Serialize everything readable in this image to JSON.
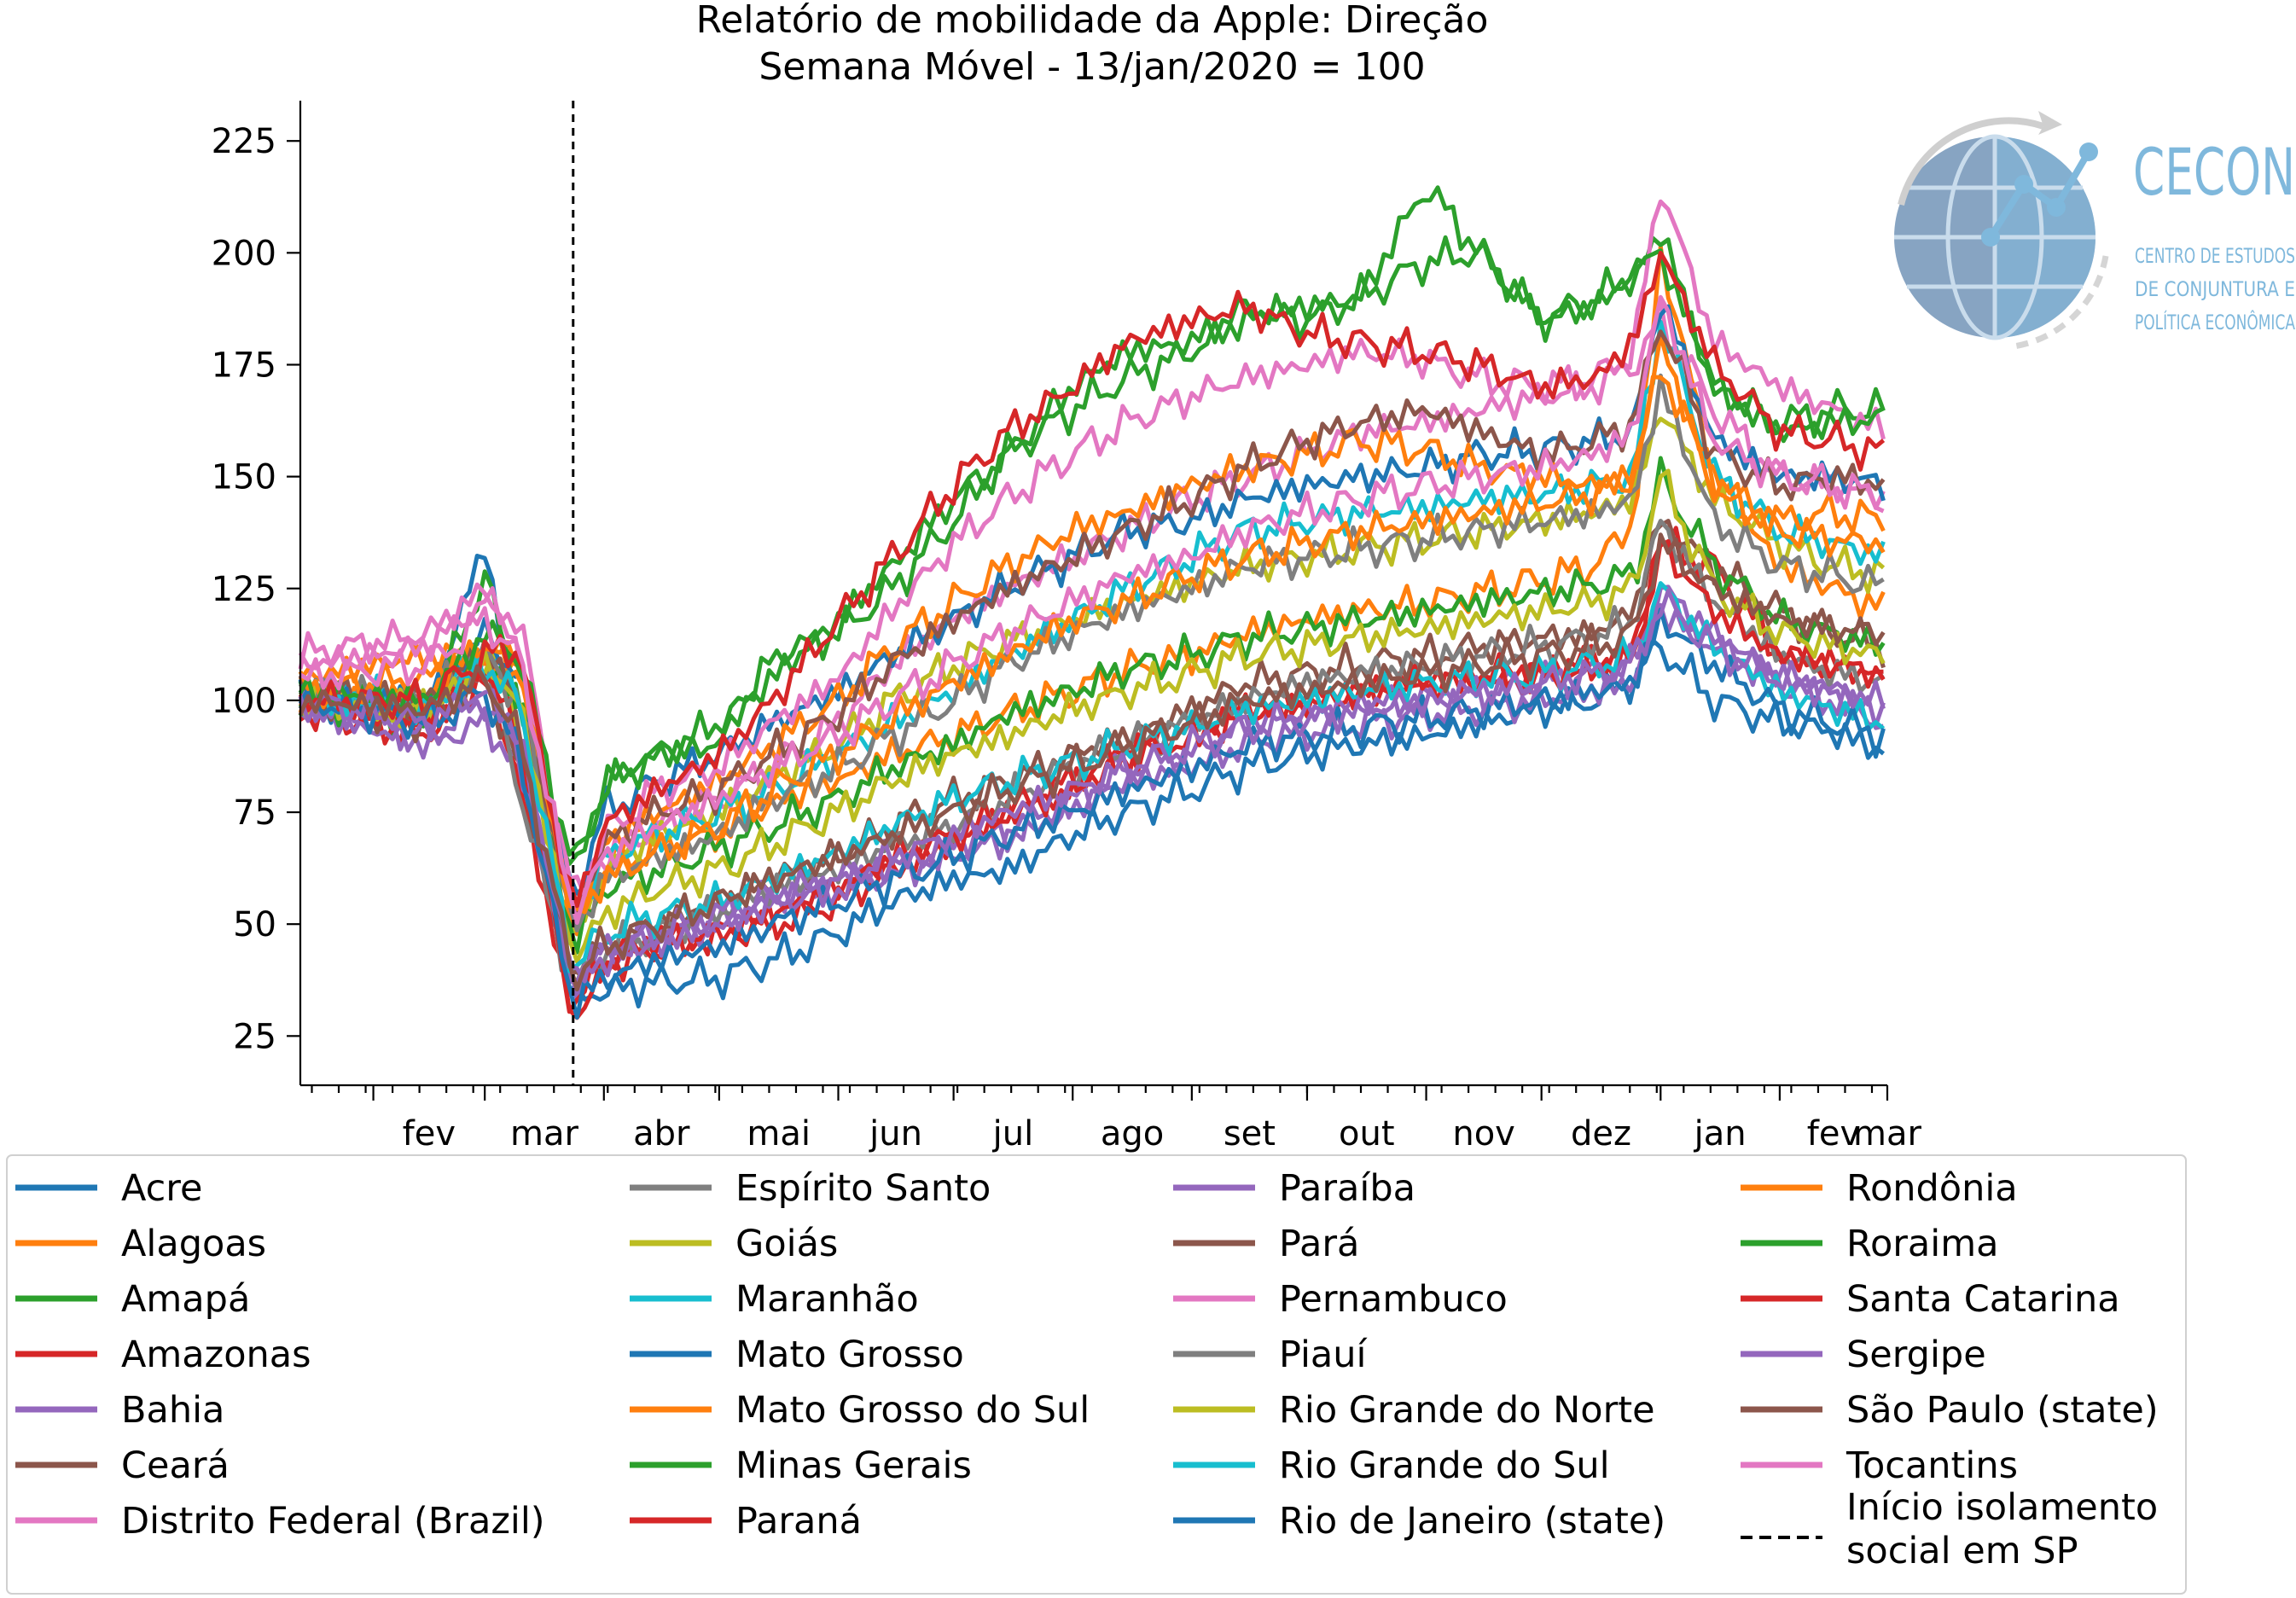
{
  "chart_data": {
    "type": "line",
    "title": "Relatório de mobilidade da Apple: Direção",
    "subtitle": "Semana Móvel -  13/jan/2020 = 100",
    "xlabel": "",
    "ylabel": "",
    "x_start": "2020-01-13",
    "x_end": "2021-03-01",
    "month_ticks": [
      {
        "label": "fev",
        "date": "2020-02-01"
      },
      {
        "label": "mar",
        "date": "2020-03-01"
      },
      {
        "label": "abr",
        "date": "2020-04-01"
      },
      {
        "label": "mai",
        "date": "2020-05-01"
      },
      {
        "label": "jun",
        "date": "2020-06-01"
      },
      {
        "label": "jul",
        "date": "2020-07-01"
      },
      {
        "label": "ago",
        "date": "2020-08-01"
      },
      {
        "label": "set",
        "date": "2020-09-01"
      },
      {
        "label": "out",
        "date": "2020-10-01"
      },
      {
        "label": "nov",
        "date": "2020-11-01"
      },
      {
        "label": "dez",
        "date": "2020-12-01"
      },
      {
        "label": "jan",
        "date": "2021-01-01"
      },
      {
        "label": "fev",
        "date": "2021-02-01"
      },
      {
        "label": "mar",
        "date": "2021-03-01"
      }
    ],
    "y_ticks": [
      25,
      50,
      75,
      100,
      125,
      150,
      175,
      200,
      225
    ],
    "ylim": [
      14,
      234
    ],
    "grid": false,
    "legend_position": "bottom",
    "key_dates": [
      "2020-01-13",
      "2020-02-15",
      "2020-03-01",
      "2020-03-10",
      "2020-03-24",
      "2020-04-01",
      "2020-04-15",
      "2020-05-01",
      "2020-05-15",
      "2020-06-01",
      "2020-06-15",
      "2020-07-01",
      "2020-07-15",
      "2020-08-01",
      "2020-08-15",
      "2020-09-01",
      "2020-09-15",
      "2020-10-01",
      "2020-10-15",
      "2020-11-01",
      "2020-11-15",
      "2020-12-01",
      "2020-12-15",
      "2020-12-25",
      "2021-01-01",
      "2021-01-15",
      "2021-02-01",
      "2021-02-15",
      "2021-03-01"
    ],
    "vline": {
      "date": "2020-03-24",
      "label": "Início isolamento social em SP"
    },
    "series": [
      {
        "name": "Acre",
        "color": "#1f77b4",
        "values": [
          100,
          98,
          135,
          90,
          33,
          35,
          37,
          38,
          42,
          48,
          55,
          60,
          62,
          70,
          75,
          80,
          85,
          88,
          90,
          92,
          95,
          98,
          100,
          105,
          112,
          100,
          95,
          93,
          88
        ]
      },
      {
        "name": "Alagoas",
        "color": "#ff7f0e",
        "values": [
          105,
          110,
          110,
          110,
          45,
          63,
          67,
          70,
          77,
          82,
          88,
          92,
          97,
          102,
          107,
          110,
          115,
          118,
          120,
          122,
          124,
          127,
          130,
          140,
          200,
          150,
          130,
          125,
          120
        ]
      },
      {
        "name": "Amapá",
        "color": "#2ca02c",
        "values": [
          102,
          95,
          128,
          100,
          60,
          82,
          88,
          90,
          110,
          115,
          125,
          140,
          155,
          170,
          178,
          180,
          188,
          185,
          190,
          198,
          200,
          185,
          188,
          195,
          205,
          170,
          162,
          165,
          165
        ]
      },
      {
        "name": "Amazonas",
        "color": "#d62728",
        "values": [
          98,
          92,
          105,
          82,
          28,
          40,
          45,
          48,
          50,
          55,
          62,
          68,
          75,
          80,
          88,
          92,
          98,
          100,
          102,
          104,
          105,
          106,
          108,
          110,
          135,
          130,
          110,
          108,
          105
        ]
      },
      {
        "name": "Bahia",
        "color": "#9467bd",
        "values": [
          98,
          90,
          95,
          85,
          37,
          43,
          47,
          50,
          55,
          60,
          62,
          67,
          70,
          77,
          85,
          88,
          95,
          97,
          99,
          100,
          102,
          104,
          106,
          108,
          125,
          115,
          105,
          102,
          95
        ]
      },
      {
        "name": "Ceará",
        "color": "#8c564b",
        "values": [
          100,
          95,
          105,
          85,
          38,
          45,
          50,
          55,
          60,
          65,
          72,
          78,
          82,
          88,
          92,
          98,
          104,
          106,
          108,
          110,
          112,
          114,
          115,
          120,
          140,
          130,
          120,
          115,
          112
        ]
      },
      {
        "name": "Distrito Federal (Brazil)",
        "color": "#e377c2",
        "values": [
          110,
          115,
          125,
          110,
          50,
          65,
          72,
          78,
          85,
          95,
          108,
          118,
          125,
          132,
          138,
          145,
          150,
          155,
          160,
          162,
          165,
          168,
          170,
          175,
          185,
          165,
          150,
          148,
          145
        ]
      },
      {
        "name": "Espírito Santo",
        "color": "#7f7f7f",
        "values": [
          102,
          100,
          110,
          80,
          35,
          44,
          48,
          53,
          58,
          62,
          68,
          72,
          78,
          85,
          90,
          95,
          100,
          104,
          106,
          108,
          110,
          112,
          114,
          118,
          140,
          122,
          110,
          106,
          104
        ]
      },
      {
        "name": "Goiás",
        "color": "#bcbd22",
        "values": [
          100,
          98,
          110,
          95,
          45,
          62,
          70,
          75,
          83,
          90,
          100,
          108,
          113,
          118,
          122,
          126,
          130,
          132,
          134,
          136,
          138,
          140,
          142,
          145,
          165,
          145,
          135,
          130,
          128
        ]
      },
      {
        "name": "Maranhão",
        "color": "#17becf",
        "values": [
          103,
          100,
          112,
          100,
          50,
          65,
          70,
          75,
          80,
          88,
          95,
          102,
          110,
          118,
          125,
          132,
          138,
          140,
          142,
          143,
          145,
          146,
          148,
          150,
          185,
          150,
          138,
          135,
          132
        ]
      },
      {
        "name": "Mato Grosso",
        "color": "#1f77b4",
        "values": [
          102,
          100,
          115,
          105,
          55,
          75,
          82,
          88,
          95,
          102,
          110,
          118,
          125,
          132,
          138,
          140,
          145,
          148,
          150,
          152,
          155,
          156,
          158,
          160,
          190,
          158,
          150,
          150,
          148
        ]
      },
      {
        "name": "Mato Grosso do Sul",
        "color": "#ff7f0e",
        "values": [
          100,
          100,
          108,
          105,
          48,
          68,
          75,
          82,
          90,
          100,
          112,
          122,
          130,
          138,
          142,
          148,
          152,
          155,
          158,
          156,
          152,
          150,
          148,
          150,
          180,
          148,
          140,
          142,
          140
        ]
      },
      {
        "name": "Minas Gerais",
        "color": "#2ca02c",
        "values": [
          100,
          98,
          110,
          100,
          45,
          58,
          62,
          67,
          72,
          78,
          85,
          90,
          97,
          102,
          107,
          110,
          114,
          116,
          118,
          120,
          122,
          124,
          126,
          128,
          150,
          130,
          118,
          115,
          112
        ]
      },
      {
        "name": "Paraná",
        "color": "#d62728",
        "values": [
          100,
          95,
          108,
          90,
          30,
          42,
          46,
          48,
          52,
          58,
          65,
          70,
          75,
          82,
          88,
          93,
          97,
          100,
          102,
          104,
          105,
          106,
          108,
          110,
          135,
          120,
          110,
          108,
          106
        ]
      },
      {
        "name": "Paraíba",
        "color": "#9467bd",
        "values": [
          100,
          92,
          100,
          88,
          36,
          42,
          46,
          50,
          55,
          58,
          62,
          66,
          70,
          76,
          82,
          85,
          90,
          93,
          95,
          97,
          98,
          100,
          102,
          104,
          120,
          112,
          104,
          100,
          96
        ]
      },
      {
        "name": "Pará",
        "color": "#8c564b",
        "values": [
          102,
          100,
          112,
          100,
          52,
          68,
          75,
          80,
          88,
          97,
          108,
          118,
          125,
          132,
          138,
          145,
          152,
          158,
          162,
          165,
          160,
          155,
          158,
          162,
          185,
          155,
          148,
          150,
          148
        ]
      },
      {
        "name": "Pernambuco",
        "color": "#e377c2",
        "values": [
          108,
          112,
          122,
          118,
          55,
          70,
          80,
          85,
          95,
          105,
          120,
          135,
          145,
          155,
          162,
          168,
          172,
          175,
          178,
          176,
          172,
          170,
          172,
          178,
          215,
          180,
          170,
          165,
          160
        ]
      },
      {
        "name": "Piauí",
        "color": "#7f7f7f",
        "values": [
          102,
          100,
          110,
          100,
          48,
          60,
          65,
          70,
          78,
          85,
          92,
          100,
          108,
          115,
          120,
          125,
          130,
          132,
          134,
          136,
          138,
          140,
          142,
          145,
          170,
          140,
          130,
          128,
          125
        ]
      },
      {
        "name": "Rio Grande do Norte",
        "color": "#bcbd22",
        "values": [
          100,
          98,
          108,
          100,
          42,
          52,
          58,
          62,
          68,
          75,
          82,
          88,
          92,
          98,
          102,
          106,
          110,
          112,
          114,
          116,
          118,
          120,
          122,
          125,
          150,
          125,
          115,
          112,
          110
        ]
      },
      {
        "name": "Rio Grande do Sul",
        "color": "#17becf",
        "values": [
          100,
          98,
          108,
          100,
          40,
          48,
          52,
          55,
          60,
          66,
          72,
          78,
          82,
          86,
          90,
          94,
          98,
          100,
          102,
          104,
          105,
          106,
          108,
          110,
          125,
          112,
          102,
          98,
          95
        ]
      },
      {
        "name": "Rio de Janeiro (state)",
        "color": "#1f77b4",
        "values": [
          100,
          95,
          102,
          88,
          32,
          38,
          42,
          45,
          50,
          55,
          60,
          65,
          70,
          75,
          80,
          85,
          90,
          92,
          94,
          96,
          98,
          100,
          102,
          104,
          118,
          108,
          98,
          95,
          92
        ]
      },
      {
        "name": "Rondônia",
        "color": "#ff7f0e",
        "values": [
          102,
          105,
          112,
          110,
          50,
          60,
          66,
          72,
          80,
          88,
          96,
          104,
          110,
          118,
          122,
          128,
          132,
          135,
          138,
          140,
          142,
          144,
          146,
          150,
          175,
          148,
          138,
          136,
          135
        ]
      },
      {
        "name": "Roraima",
        "color": "#2ca02c",
        "values": [
          102,
          100,
          115,
          110,
          62,
          80,
          88,
          95,
          105,
          118,
          130,
          145,
          155,
          165,
          172,
          178,
          185,
          188,
          190,
          215,
          200,
          185,
          190,
          195,
          200,
          170,
          160,
          162,
          163
        ]
      },
      {
        "name": "Santa Catarina",
        "color": "#d62728",
        "values": [
          100,
          100,
          110,
          112,
          52,
          72,
          80,
          88,
          100,
          118,
          132,
          148,
          160,
          170,
          180,
          185,
          188,
          182,
          180,
          178,
          175,
          170,
          172,
          180,
          200,
          175,
          160,
          158,
          155
        ]
      },
      {
        "name": "Sergipe",
        "color": "#9467bd",
        "values": [
          100,
          95,
          102,
          92,
          38,
          45,
          48,
          52,
          56,
          60,
          65,
          70,
          75,
          80,
          85,
          90,
          94,
          96,
          98,
          100,
          102,
          104,
          106,
          108,
          122,
          112,
          105,
          102,
          100
        ]
      },
      {
        "name": "São Paulo (state)",
        "color": "#8c564b",
        "values": [
          100,
          98,
          105,
          92,
          38,
          45,
          50,
          55,
          60,
          65,
          70,
          75,
          80,
          85,
          90,
          95,
          100,
          102,
          104,
          106,
          108,
          110,
          112,
          115,
          135,
          125,
          118,
          116,
          115
        ]
      },
      {
        "name": "Tocantins",
        "color": "#e377c2",
        "values": [
          105,
          108,
          118,
          110,
          52,
          65,
          72,
          78,
          85,
          92,
          100,
          108,
          115,
          122,
          128,
          132,
          138,
          142,
          145,
          148,
          150,
          152,
          155,
          160,
          190,
          158,
          150,
          148,
          145
        ]
      }
    ]
  },
  "legend": {
    "vline_label_line1": "Início isolamento",
    "vline_label_line2": "social em SP"
  },
  "logo": {
    "name": "CECON",
    "line1": "CENTRO DE ESTUDOS",
    "line2": "DE CONJUNTURA E",
    "line3": "POLÍTICA ECONÔMICA"
  }
}
